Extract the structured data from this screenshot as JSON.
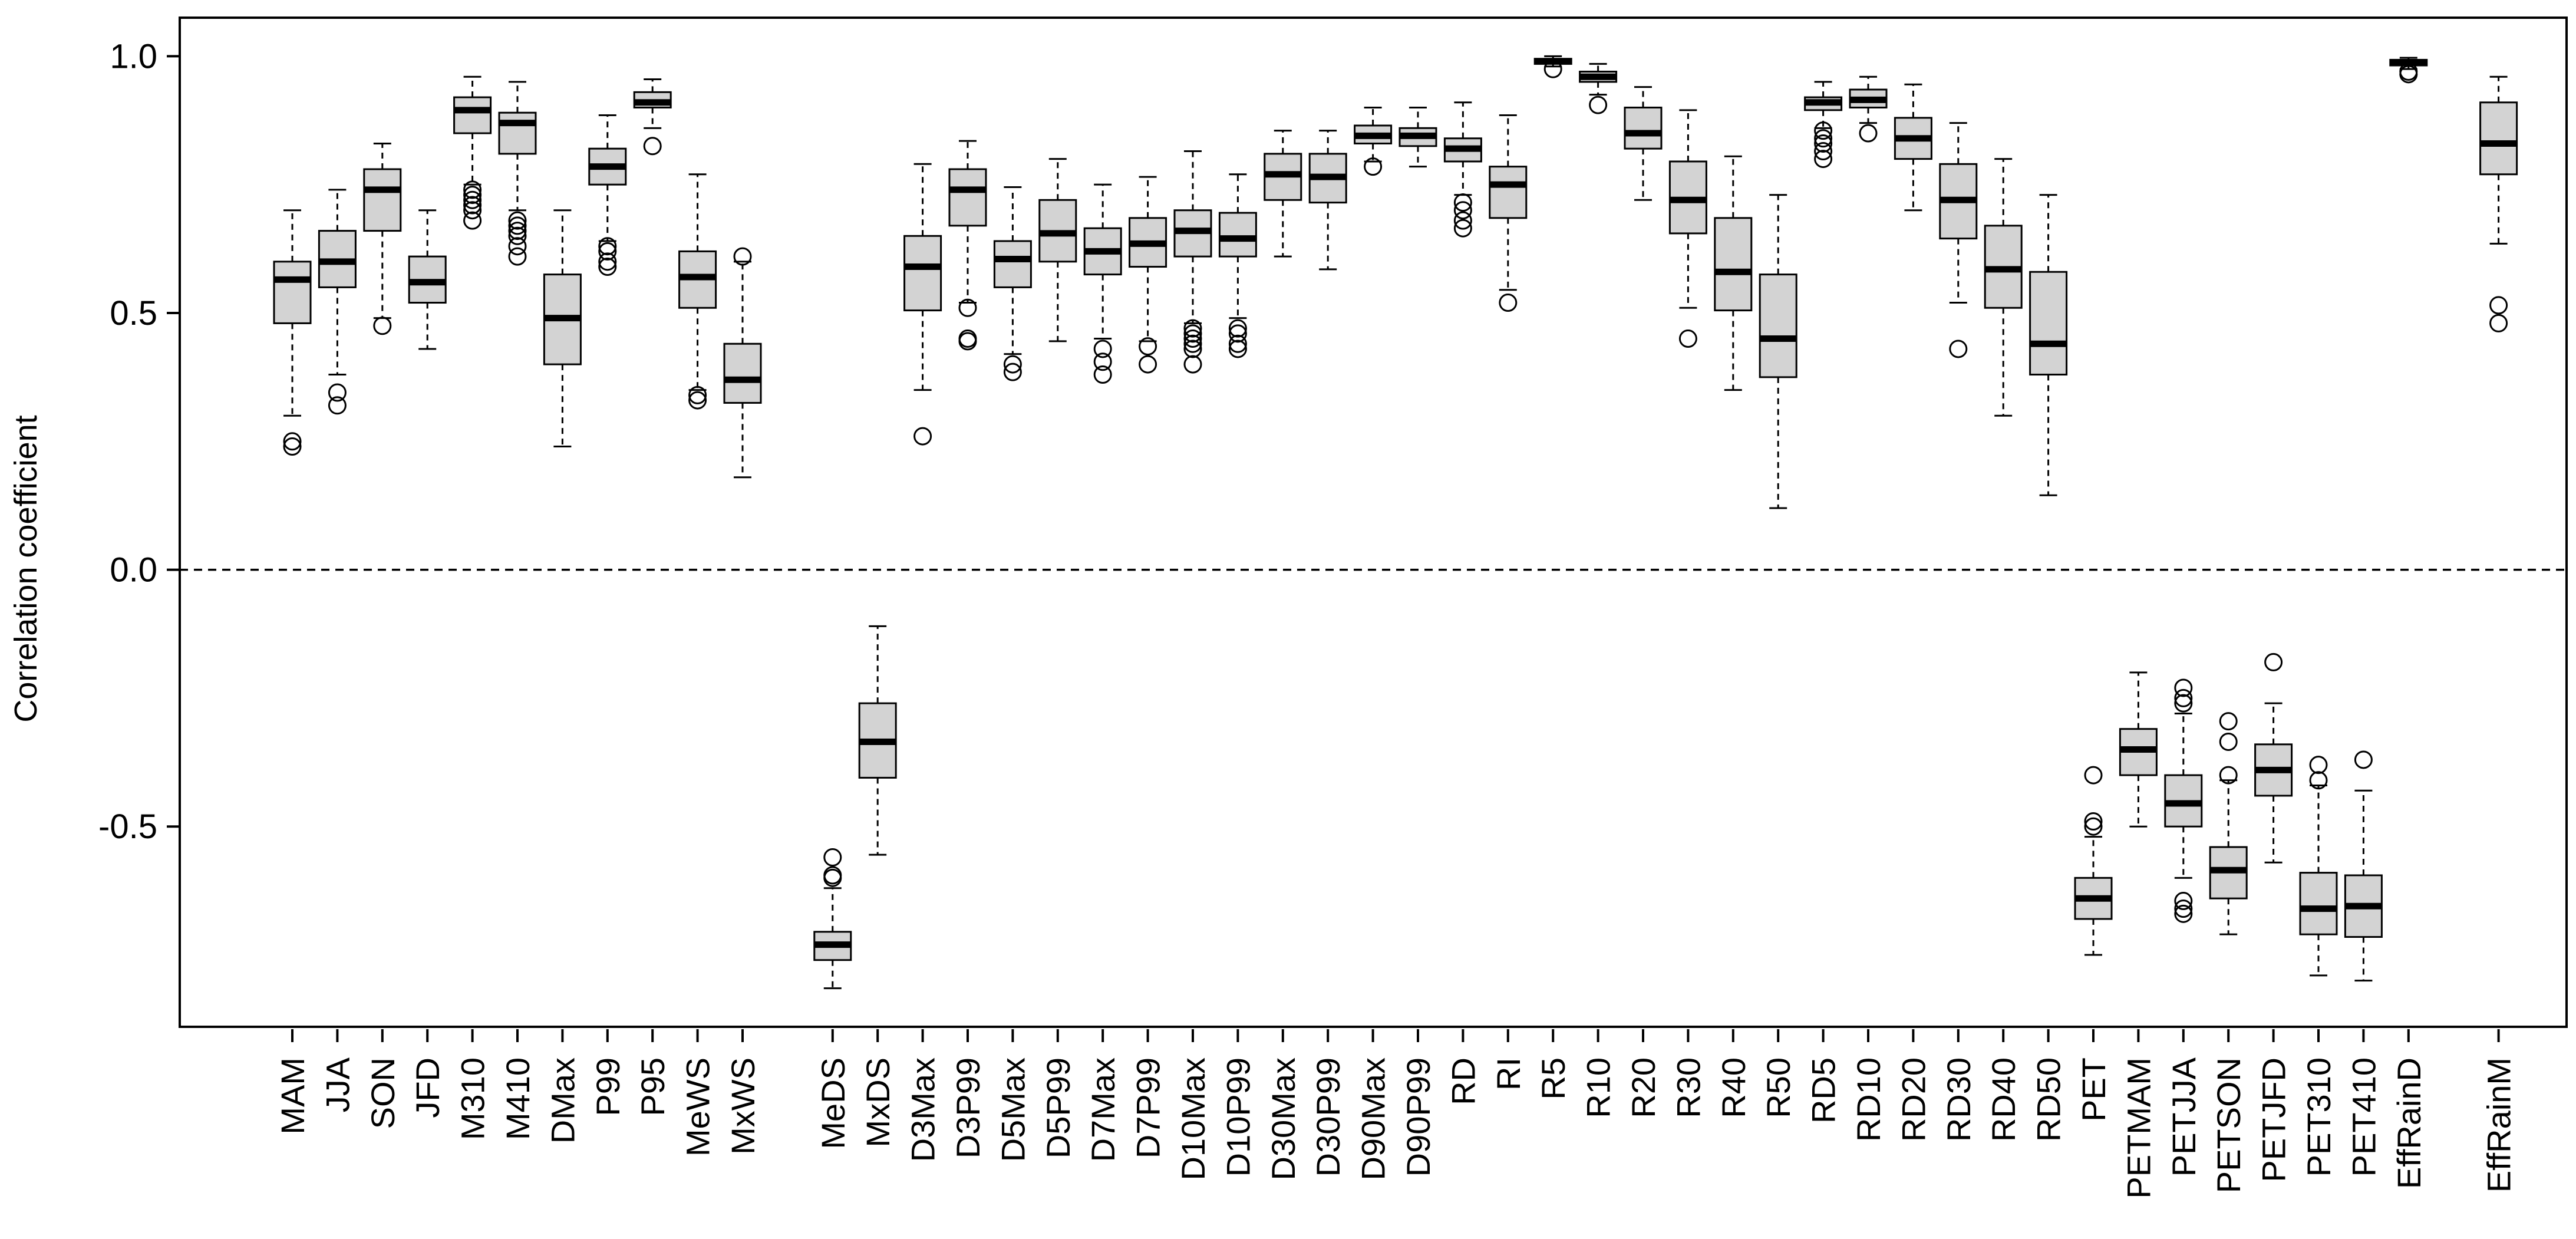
{
  "chart_data": {
    "type": "boxplot",
    "title": "",
    "xlabel": "",
    "ylabel": "Correlation coefficient",
    "ylim": [
      -0.89,
      1.075
    ],
    "yticks": [
      1.0,
      0.5,
      0.0,
      -0.5
    ],
    "ytick_labels": [
      "1.0",
      "0.5",
      "0.0",
      "-0.5"
    ],
    "reference_line": 0.0,
    "group_gaps_after": [
      "MxWS",
      "EffRainD"
    ],
    "colors": {
      "box_fill": "#d3d3d3",
      "stroke": "#000000",
      "background": "#ffffff"
    },
    "categories": [
      "MAM",
      "JJA",
      "SON",
      "JFD",
      "M310",
      "M410",
      "DMax",
      "P99",
      "P95",
      "MeWS",
      "MxWS",
      "MeDS",
      "MxDS",
      "D3Max",
      "D3P99",
      "D5Max",
      "D5P99",
      "D7Max",
      "D7P99",
      "D10Max",
      "D10P99",
      "D30Max",
      "D30P99",
      "D90Max",
      "D90P99",
      "RD",
      "RI",
      "R5",
      "R10",
      "R20",
      "R30",
      "R40",
      "R50",
      "RD5",
      "RD10",
      "RD20",
      "RD30",
      "RD40",
      "RD50",
      "PET",
      "PETMAM",
      "PETJJA",
      "PETSON",
      "PETJFD",
      "PET310",
      "PET410",
      "EffRainD",
      "EffRainM"
    ],
    "boxes": [
      {
        "name": "MAM",
        "whisker_low": 0.3,
        "q1": 0.48,
        "median": 0.565,
        "q3": 0.6,
        "whisker_high": 0.7,
        "outliers": [
          0.24,
          0.25
        ]
      },
      {
        "name": "JJA",
        "whisker_low": 0.38,
        "q1": 0.55,
        "median": 0.6,
        "q3": 0.66,
        "whisker_high": 0.74,
        "outliers": [
          0.32,
          0.345
        ]
      },
      {
        "name": "SON",
        "whisker_low": 0.49,
        "q1": 0.66,
        "median": 0.74,
        "q3": 0.78,
        "whisker_high": 0.83,
        "outliers": [
          0.475
        ]
      },
      {
        "name": "JFD",
        "whisker_low": 0.43,
        "q1": 0.52,
        "median": 0.56,
        "q3": 0.61,
        "whisker_high": 0.7,
        "outliers": []
      },
      {
        "name": "M310",
        "whisker_low": 0.75,
        "q1": 0.85,
        "median": 0.895,
        "q3": 0.92,
        "whisker_high": 0.96,
        "outliers": [
          0.68,
          0.7,
          0.71,
          0.72,
          0.73,
          0.74
        ]
      },
      {
        "name": "M410",
        "whisker_low": 0.7,
        "q1": 0.81,
        "median": 0.87,
        "q3": 0.89,
        "whisker_high": 0.95,
        "outliers": [
          0.61,
          0.63,
          0.65,
          0.66,
          0.67,
          0.68
        ]
      },
      {
        "name": "DMax",
        "whisker_low": 0.24,
        "q1": 0.4,
        "median": 0.49,
        "q3": 0.575,
        "whisker_high": 0.7,
        "outliers": []
      },
      {
        "name": "P99",
        "whisker_low": 0.64,
        "q1": 0.75,
        "median": 0.785,
        "q3": 0.82,
        "whisker_high": 0.885,
        "outliers": [
          0.59,
          0.6,
          0.62,
          0.63
        ]
      },
      {
        "name": "P95",
        "whisker_low": 0.86,
        "q1": 0.9,
        "median": 0.91,
        "q3": 0.93,
        "whisker_high": 0.955,
        "outliers": [
          0.825
        ]
      },
      {
        "name": "MeWS",
        "whisker_low": 0.35,
        "q1": 0.51,
        "median": 0.57,
        "q3": 0.62,
        "whisker_high": 0.77,
        "outliers": [
          0.33,
          0.34
        ]
      },
      {
        "name": "MxWS",
        "whisker_low": 0.18,
        "q1": 0.325,
        "median": 0.37,
        "q3": 0.44,
        "whisker_high": 0.6,
        "outliers": [
          0.61
        ]
      },
      {
        "name": "MeDS",
        "whisker_low": -0.815,
        "q1": -0.76,
        "median": -0.73,
        "q3": -0.705,
        "whisker_high": -0.62,
        "outliers": [
          -0.56,
          -0.595,
          -0.6
        ]
      },
      {
        "name": "MxDS",
        "whisker_low": -0.555,
        "q1": -0.405,
        "median": -0.335,
        "q3": -0.26,
        "whisker_high": -0.11,
        "outliers": []
      },
      {
        "name": "D3Max",
        "whisker_low": 0.35,
        "q1": 0.505,
        "median": 0.59,
        "q3": 0.65,
        "whisker_high": 0.79,
        "outliers": [
          0.26
        ]
      },
      {
        "name": "D3P99",
        "whisker_low": 0.52,
        "q1": 0.67,
        "median": 0.74,
        "q3": 0.78,
        "whisker_high": 0.835,
        "outliers": [
          0.445,
          0.45,
          0.51
        ]
      },
      {
        "name": "D5Max",
        "whisker_low": 0.42,
        "q1": 0.55,
        "median": 0.605,
        "q3": 0.64,
        "whisker_high": 0.745,
        "outliers": [
          0.385,
          0.4
        ]
      },
      {
        "name": "D5P99",
        "whisker_low": 0.445,
        "q1": 0.6,
        "median": 0.655,
        "q3": 0.72,
        "whisker_high": 0.8,
        "outliers": []
      },
      {
        "name": "D7Max",
        "whisker_low": 0.45,
        "q1": 0.575,
        "median": 0.62,
        "q3": 0.665,
        "whisker_high": 0.75,
        "outliers": [
          0.38,
          0.405,
          0.43
        ]
      },
      {
        "name": "D7P99",
        "whisker_low": 0.445,
        "q1": 0.59,
        "median": 0.635,
        "q3": 0.685,
        "whisker_high": 0.765,
        "outliers": [
          0.4,
          0.435
        ]
      },
      {
        "name": "D10Max",
        "whisker_low": 0.48,
        "q1": 0.61,
        "median": 0.66,
        "q3": 0.7,
        "whisker_high": 0.815,
        "outliers": [
          0.4,
          0.43,
          0.44,
          0.45,
          0.46,
          0.47
        ]
      },
      {
        "name": "D10P99",
        "whisker_low": 0.49,
        "q1": 0.61,
        "median": 0.645,
        "q3": 0.695,
        "whisker_high": 0.77,
        "outliers": [
          0.43,
          0.44,
          0.46,
          0.47
        ]
      },
      {
        "name": "D30Max",
        "whisker_low": 0.61,
        "q1": 0.72,
        "median": 0.77,
        "q3": 0.81,
        "whisker_high": 0.855,
        "outliers": []
      },
      {
        "name": "D30P99",
        "whisker_low": 0.585,
        "q1": 0.715,
        "median": 0.765,
        "q3": 0.81,
        "whisker_high": 0.855,
        "outliers": []
      },
      {
        "name": "D90Max",
        "whisker_low": 0.795,
        "q1": 0.83,
        "median": 0.845,
        "q3": 0.865,
        "whisker_high": 0.9,
        "outliers": [
          0.785
        ]
      },
      {
        "name": "D90P99",
        "whisker_low": 0.785,
        "q1": 0.825,
        "median": 0.845,
        "q3": 0.86,
        "whisker_high": 0.9,
        "outliers": []
      },
      {
        "name": "RD",
        "whisker_low": 0.73,
        "q1": 0.795,
        "median": 0.82,
        "q3": 0.84,
        "whisker_high": 0.91,
        "outliers": [
          0.665,
          0.68,
          0.7,
          0.715
        ]
      },
      {
        "name": "RI",
        "whisker_low": 0.545,
        "q1": 0.685,
        "median": 0.75,
        "q3": 0.785,
        "whisker_high": 0.885,
        "outliers": [
          0.52
        ]
      },
      {
        "name": "R5",
        "whisker_low": 0.98,
        "q1": 0.985,
        "median": 0.99,
        "q3": 0.995,
        "whisker_high": 1.0,
        "outliers": [
          0.975
        ]
      },
      {
        "name": "R10",
        "whisker_low": 0.925,
        "q1": 0.95,
        "median": 0.96,
        "q3": 0.97,
        "whisker_high": 0.985,
        "outliers": [
          0.905
        ]
      },
      {
        "name": "R20",
        "whisker_low": 0.72,
        "q1": 0.82,
        "median": 0.85,
        "q3": 0.9,
        "whisker_high": 0.94,
        "outliers": []
      },
      {
        "name": "R30",
        "whisker_low": 0.51,
        "q1": 0.655,
        "median": 0.72,
        "q3": 0.795,
        "whisker_high": 0.895,
        "outliers": [
          0.45
        ]
      },
      {
        "name": "R40",
        "whisker_low": 0.35,
        "q1": 0.505,
        "median": 0.58,
        "q3": 0.685,
        "whisker_high": 0.805,
        "outliers": []
      },
      {
        "name": "R50",
        "whisker_low": 0.12,
        "q1": 0.375,
        "median": 0.45,
        "q3": 0.575,
        "whisker_high": 0.73,
        "outliers": []
      },
      {
        "name": "RD5",
        "whisker_low": 0.86,
        "q1": 0.895,
        "median": 0.91,
        "q3": 0.92,
        "whisker_high": 0.95,
        "outliers": [
          0.8,
          0.815,
          0.83,
          0.84,
          0.855
        ]
      },
      {
        "name": "RD10",
        "whisker_low": 0.87,
        "q1": 0.9,
        "median": 0.915,
        "q3": 0.935,
        "whisker_high": 0.96,
        "outliers": [
          0.85
        ]
      },
      {
        "name": "RD20",
        "whisker_low": 0.7,
        "q1": 0.8,
        "median": 0.84,
        "q3": 0.88,
        "whisker_high": 0.945,
        "outliers": []
      },
      {
        "name": "RD30",
        "whisker_low": 0.52,
        "q1": 0.645,
        "median": 0.72,
        "q3": 0.79,
        "whisker_high": 0.87,
        "outliers": [
          0.43
        ]
      },
      {
        "name": "RD40",
        "whisker_low": 0.3,
        "q1": 0.51,
        "median": 0.585,
        "q3": 0.67,
        "whisker_high": 0.8,
        "outliers": []
      },
      {
        "name": "RD50",
        "whisker_low": 0.145,
        "q1": 0.38,
        "median": 0.44,
        "q3": 0.58,
        "whisker_high": 0.73,
        "outliers": []
      },
      {
        "name": "PET",
        "whisker_low": -0.75,
        "q1": -0.68,
        "median": -0.64,
        "q3": -0.6,
        "whisker_high": -0.52,
        "outliers": [
          -0.4,
          -0.49,
          -0.5
        ]
      },
      {
        "name": "PETMAM",
        "whisker_low": -0.5,
        "q1": -0.4,
        "median": -0.35,
        "q3": -0.31,
        "whisker_high": -0.2,
        "outliers": []
      },
      {
        "name": "PETJJA",
        "whisker_low": -0.6,
        "q1": -0.5,
        "median": -0.455,
        "q3": -0.4,
        "whisker_high": -0.28,
        "outliers": [
          -0.23,
          -0.25,
          -0.26,
          -0.645,
          -0.66,
          -0.67
        ]
      },
      {
        "name": "PETSON",
        "whisker_low": -0.71,
        "q1": -0.64,
        "median": -0.585,
        "q3": -0.54,
        "whisker_high": -0.41,
        "outliers": [
          -0.295,
          -0.335,
          -0.4
        ]
      },
      {
        "name": "PETJFD",
        "whisker_low": -0.57,
        "q1": -0.44,
        "median": -0.39,
        "q3": -0.34,
        "whisker_high": -0.26,
        "outliers": [
          -0.18
        ]
      },
      {
        "name": "PET310",
        "whisker_low": -0.79,
        "q1": -0.71,
        "median": -0.66,
        "q3": -0.59,
        "whisker_high": -0.42,
        "outliers": [
          -0.38,
          -0.41
        ]
      },
      {
        "name": "PET410",
        "whisker_low": -0.8,
        "q1": -0.715,
        "median": -0.655,
        "q3": -0.595,
        "whisker_high": -0.43,
        "outliers": [
          -0.37
        ]
      },
      {
        "name": "EffRainD",
        "whisker_low": 0.975,
        "q1": 0.982,
        "median": 0.988,
        "q3": 0.993,
        "whisker_high": 0.997,
        "outliers": [
          0.965,
          0.97
        ]
      },
      {
        "name": "EffRainM",
        "whisker_low": 0.635,
        "q1": 0.77,
        "median": 0.83,
        "q3": 0.91,
        "whisker_high": 0.96,
        "outliers": [
          0.48,
          0.515
        ]
      }
    ]
  }
}
